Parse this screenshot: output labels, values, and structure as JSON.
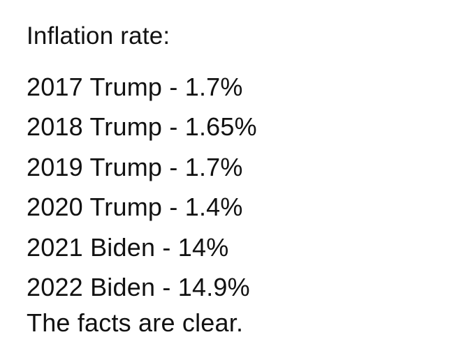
{
  "post": {
    "heading": "Inflation rate:",
    "rows": [
      {
        "year": "2017",
        "president": "Trump",
        "rate": "1.7%"
      },
      {
        "year": "2018",
        "president": "Trump",
        "rate": "1.65%"
      },
      {
        "year": "2019",
        "president": "Trump",
        "rate": "1.7%"
      },
      {
        "year": "2020",
        "president": "Trump",
        "rate": "1.4%"
      },
      {
        "year": "2021",
        "president": "Biden",
        "rate": "14%"
      },
      {
        "year": "2022",
        "president": "Biden",
        "rate": "14.9%"
      }
    ],
    "closing": "The facts are clear."
  }
}
